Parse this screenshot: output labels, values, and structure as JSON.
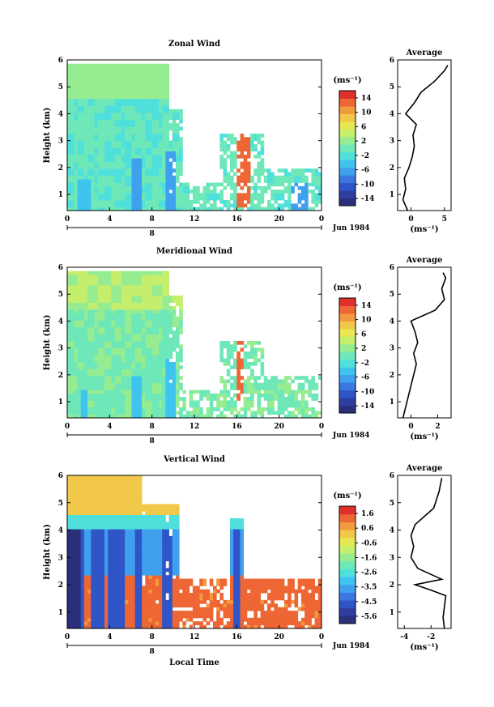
{
  "chart_data": [
    {
      "type": "heatmap",
      "title": "Zonal Wind",
      "ylabel": "Height (km)",
      "xlabel": "",
      "x_ticks": [
        "0",
        "4",
        "8",
        "12",
        "16",
        "20",
        "0"
      ],
      "y_ticks": [
        "1",
        "2",
        "3",
        "4",
        "5",
        "6"
      ],
      "xlim": [
        0,
        24
      ],
      "ylim": [
        0.4,
        6
      ],
      "date_label": "Jun 1984",
      "day_label": "8",
      "colorbar": {
        "unit": "(ms⁻¹)",
        "ticks": [
          "14",
          "10",
          "6",
          "2",
          "-2",
          "-6",
          "-10",
          "-14"
        ],
        "range": [
          -16,
          16
        ]
      },
      "average_profile": {
        "title": "Average",
        "unit": "(ms⁻¹)",
        "x_ticks": [
          "0",
          "5"
        ],
        "xlim": [
          -2,
          6
        ],
        "heights": [
          0.4,
          0.8,
          1.2,
          1.6,
          2.0,
          2.4,
          2.8,
          3.2,
          3.6,
          4.0,
          4.4,
          4.8,
          5.2,
          5.6,
          5.8
        ],
        "values": [
          -0.5,
          -1.2,
          -0.8,
          -1.0,
          -0.3,
          0.2,
          0.5,
          0.3,
          0.8,
          -0.8,
          0.5,
          1.5,
          3.5,
          5.0,
          5.5
        ]
      }
    },
    {
      "type": "heatmap",
      "title": "Meridional Wind",
      "ylabel": "Height (km)",
      "xlabel": "",
      "x_ticks": [
        "0",
        "4",
        "8",
        "12",
        "16",
        "20",
        "0"
      ],
      "y_ticks": [
        "1",
        "2",
        "3",
        "4",
        "5",
        "6"
      ],
      "xlim": [
        0,
        24
      ],
      "ylim": [
        0.4,
        6
      ],
      "date_label": "Jun 1984",
      "day_label": "8",
      "colorbar": {
        "unit": "(ms⁻¹)",
        "ticks": [
          "14",
          "10",
          "6",
          "2",
          "-2",
          "-6",
          "-10",
          "-14"
        ],
        "range": [
          -16,
          16
        ]
      },
      "average_profile": {
        "title": "Average",
        "unit": "(ms⁻¹)",
        "x_ticks": [
          "0",
          "2"
        ],
        "xlim": [
          -1,
          3
        ],
        "heights": [
          0.4,
          0.8,
          1.2,
          1.6,
          2.0,
          2.4,
          2.8,
          3.2,
          3.6,
          4.0,
          4.4,
          4.8,
          5.2,
          5.6,
          5.8
        ],
        "values": [
          -0.6,
          -0.4,
          -0.2,
          0.0,
          0.2,
          0.4,
          0.2,
          0.5,
          0.3,
          0.0,
          1.8,
          2.5,
          2.3,
          2.6,
          2.4
        ]
      }
    },
    {
      "type": "heatmap",
      "title": "Vertical Wind",
      "ylabel": "Height (km)",
      "xlabel": "Local Time",
      "x_ticks": [
        "0",
        "4",
        "8",
        "12",
        "16",
        "20",
        "0"
      ],
      "y_ticks": [
        "1",
        "2",
        "3",
        "4",
        "5",
        "6"
      ],
      "xlim": [
        0,
        24
      ],
      "ylim": [
        0.4,
        6
      ],
      "date_label": "Jun 1984",
      "day_label": "8",
      "colorbar": {
        "unit": "(ms⁻¹)",
        "ticks": [
          "1.6",
          "0.6",
          "-0.6",
          "-1.6",
          "-2.6",
          "-3.5",
          "-4.5",
          "-5.6"
        ],
        "range": [
          -6,
          2
        ]
      },
      "average_profile": {
        "title": "Average",
        "unit": "(ms⁻¹)",
        "x_ticks": [
          "-4",
          "-2"
        ],
        "xlim": [
          -4.5,
          -0.5
        ],
        "heights": [
          0.4,
          0.8,
          1.2,
          1.6,
          1.8,
          2.0,
          2.2,
          2.6,
          3.0,
          3.4,
          3.8,
          4.2,
          4.8,
          5.4,
          5.9
        ],
        "values": [
          -1.0,
          -1.1,
          -1.0,
          -0.9,
          -2.0,
          -3.2,
          -1.2,
          -3.0,
          -3.5,
          -3.3,
          -3.5,
          -3.2,
          -1.8,
          -1.4,
          -1.2
        ]
      }
    }
  ]
}
